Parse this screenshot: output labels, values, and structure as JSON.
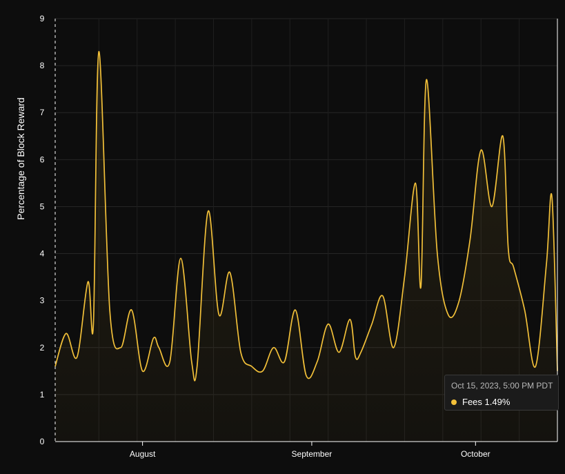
{
  "chart_data": {
    "type": "area",
    "ylabel": "Percentage of Block Reward",
    "xlabel": "",
    "ylim": [
      0,
      9
    ],
    "yticks": [
      "0",
      "1",
      "2",
      "3",
      "4",
      "5",
      "6",
      "7",
      "8",
      "9"
    ],
    "x_start": "2023-07-16",
    "x_end": "2023-10-16",
    "x_ticks": [
      {
        "label": "August",
        "date": "2023-08-01"
      },
      {
        "label": "September",
        "date": "2023-09-01"
      },
      {
        "label": "October",
        "date": "2023-10-01"
      }
    ],
    "grid": true,
    "series": [
      {
        "name": "Fees",
        "color": "#f2c039",
        "x": [
          "2023-07-16",
          "2023-07-18",
          "2023-07-20",
          "2023-07-22",
          "2023-07-23",
          "2023-07-24",
          "2023-07-26",
          "2023-07-28",
          "2023-07-30",
          "2023-08-01",
          "2023-08-03",
          "2023-08-04",
          "2023-08-06",
          "2023-08-08",
          "2023-08-10",
          "2023-08-11",
          "2023-08-13",
          "2023-08-15",
          "2023-08-17",
          "2023-08-19",
          "2023-08-21",
          "2023-08-23",
          "2023-08-25",
          "2023-08-27",
          "2023-08-29",
          "2023-08-31",
          "2023-09-02",
          "2023-09-04",
          "2023-09-06",
          "2023-09-08",
          "2023-09-09",
          "2023-09-10",
          "2023-09-12",
          "2023-09-14",
          "2023-09-16",
          "2023-09-18",
          "2023-09-20",
          "2023-09-21",
          "2023-09-22",
          "2023-09-24",
          "2023-09-26",
          "2023-09-28",
          "2023-09-30",
          "2023-10-02",
          "2023-10-04",
          "2023-10-06",
          "2023-10-07",
          "2023-10-08",
          "2023-10-10",
          "2023-10-12",
          "2023-10-14",
          "2023-10-15",
          "2023-10-16"
        ],
        "values": [
          1.6,
          2.3,
          1.8,
          3.4,
          2.5,
          8.3,
          2.8,
          2.0,
          2.8,
          1.5,
          2.2,
          2.0,
          1.7,
          3.9,
          1.7,
          1.6,
          4.9,
          2.7,
          3.6,
          1.9,
          1.6,
          1.5,
          2.0,
          1.7,
          2.8,
          1.4,
          1.7,
          2.5,
          1.9,
          2.6,
          1.8,
          1.9,
          2.5,
          3.1,
          2.0,
          3.5,
          5.5,
          3.3,
          7.7,
          4.0,
          2.7,
          3.0,
          4.3,
          6.2,
          5.0,
          6.5,
          4.1,
          3.7,
          2.8,
          1.6,
          3.8,
          5.2,
          1.5
        ]
      }
    ],
    "tooltip": {
      "date_text": "Oct 15, 2023, 5:00 PM PDT",
      "label": "Fees",
      "value": "1.49%"
    }
  }
}
